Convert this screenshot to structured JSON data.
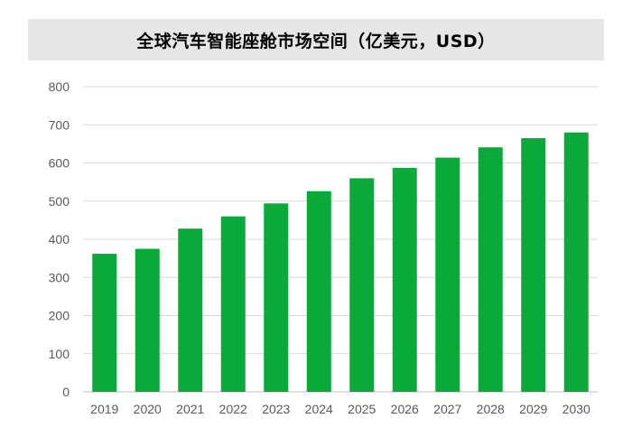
{
  "chart_data": {
    "type": "bar",
    "title": "全球汽车智能座舱市场空间（亿美元，USD）",
    "categories": [
      "2019",
      "2020",
      "2021",
      "2022",
      "2023",
      "2024",
      "2025",
      "2026",
      "2027",
      "2028",
      "2029",
      "2030"
    ],
    "values": [
      362,
      375,
      428,
      460,
      494,
      526,
      560,
      587,
      614,
      641,
      665,
      680
    ],
    "ylim": [
      0,
      800
    ],
    "yticks": [
      0,
      100,
      200,
      300,
      400,
      500,
      600,
      700,
      800
    ],
    "grid": true,
    "bar_color": "#0aaa3a",
    "grid_color": "#d9d9d9"
  }
}
